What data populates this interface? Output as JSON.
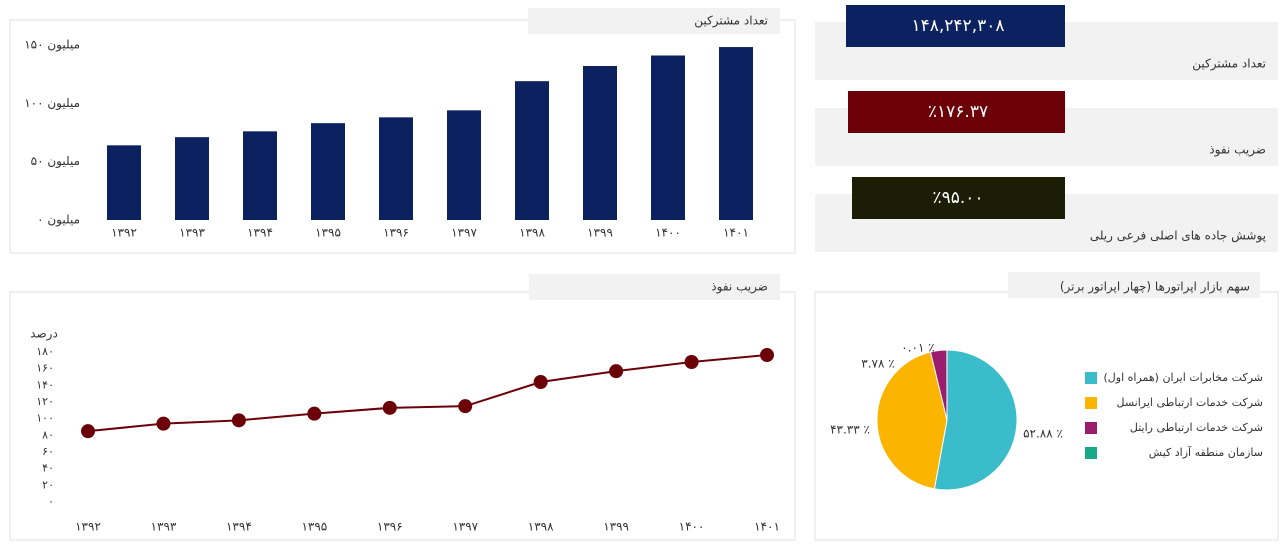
{
  "kpis": [
    {
      "value": "۱۴۸,۲۴۲,۳۰۸",
      "label": "تعداد مشترکین",
      "color": "#0b2160"
    },
    {
      "value": "٪۱۷۶.۳۷",
      "label": "ضریب نفوذ",
      "color": "#6b0008"
    },
    {
      "value": "٪۹۵.۰۰",
      "label": "پوشش جاده های اصلی فرعی ریلی",
      "color": "#1b1d04"
    }
  ],
  "chart_data": [
    {
      "type": "bar",
      "title": "تعداد مشترکین",
      "color": "#0b2160",
      "categories": [
        "۱۳۹۲",
        "۱۳۹۳",
        "۱۳۹۴",
        "۱۳۹۵",
        "۱۳۹۶",
        "۱۳۹۷",
        "۱۳۹۸",
        "۱۳۹۹",
        "۱۴۰۰",
        "۱۴۰۱"
      ],
      "values": [
        64,
        71,
        76,
        83,
        88,
        94,
        119,
        132,
        141,
        148.24
      ],
      "ylim": [
        0,
        150
      ],
      "yticks": [
        {
          "value": 0,
          "label": "۰ میلیون"
        },
        {
          "value": 50,
          "label": "۵۰ میلیون"
        },
        {
          "value": 100,
          "label": "۱۰۰ میلیون"
        },
        {
          "value": 150,
          "label": "۱۵۰ میلیون"
        }
      ]
    },
    {
      "type": "line",
      "title": "ضریب نفوذ",
      "y_label": "درصد",
      "color": "#6b0008",
      "categories": [
        "۱۳۹۲",
        "۱۳۹۳",
        "۱۳۹۴",
        "۱۳۹۵",
        "۱۳۹۶",
        "۱۳۹۷",
        "۱۳۹۸",
        "۱۳۹۹",
        "۱۴۰۰",
        "۱۴۰۱"
      ],
      "values": [
        85,
        94,
        98,
        106,
        113,
        115,
        144,
        157,
        168,
        176.37
      ],
      "ylim": [
        0,
        180
      ],
      "yticks": [
        {
          "value": 0,
          "label": "۰"
        },
        {
          "value": 20,
          "label": "۲۰"
        },
        {
          "value": 40,
          "label": "۴۰"
        },
        {
          "value": 60,
          "label": "۶۰"
        },
        {
          "value": 80,
          "label": "۸۰"
        },
        {
          "value": 100,
          "label": "۱۰۰"
        },
        {
          "value": 120,
          "label": "۱۲۰"
        },
        {
          "value": 140,
          "label": "۱۴۰"
        },
        {
          "value": 160,
          "label": "۱۶۰"
        },
        {
          "value": 180,
          "label": "۱۸۰"
        }
      ]
    },
    {
      "type": "pie",
      "title": "سهم بازار اپراتورها (چهار اپراتور برتر)",
      "categories": [
        "شرکت مخابرات ایران (همراه اول)",
        "شرکت خدمات ارتباطی ایرانسل",
        "شرکت خدمات ارتباطی رایتل",
        "سازمان منطقه آزاد کیش"
      ],
      "values": [
        52.88,
        43.33,
        3.78,
        0.01
      ],
      "value_labels": [
        "۵۲.۸۸ ٪",
        "۴۳.۳۳ ٪",
        "۳.۷۸ ٪",
        "۰.۰۱ ٪"
      ],
      "colors": [
        "#3bbccb",
        "#fbb400",
        "#9c1d6e",
        "#1aa88a"
      ]
    }
  ]
}
